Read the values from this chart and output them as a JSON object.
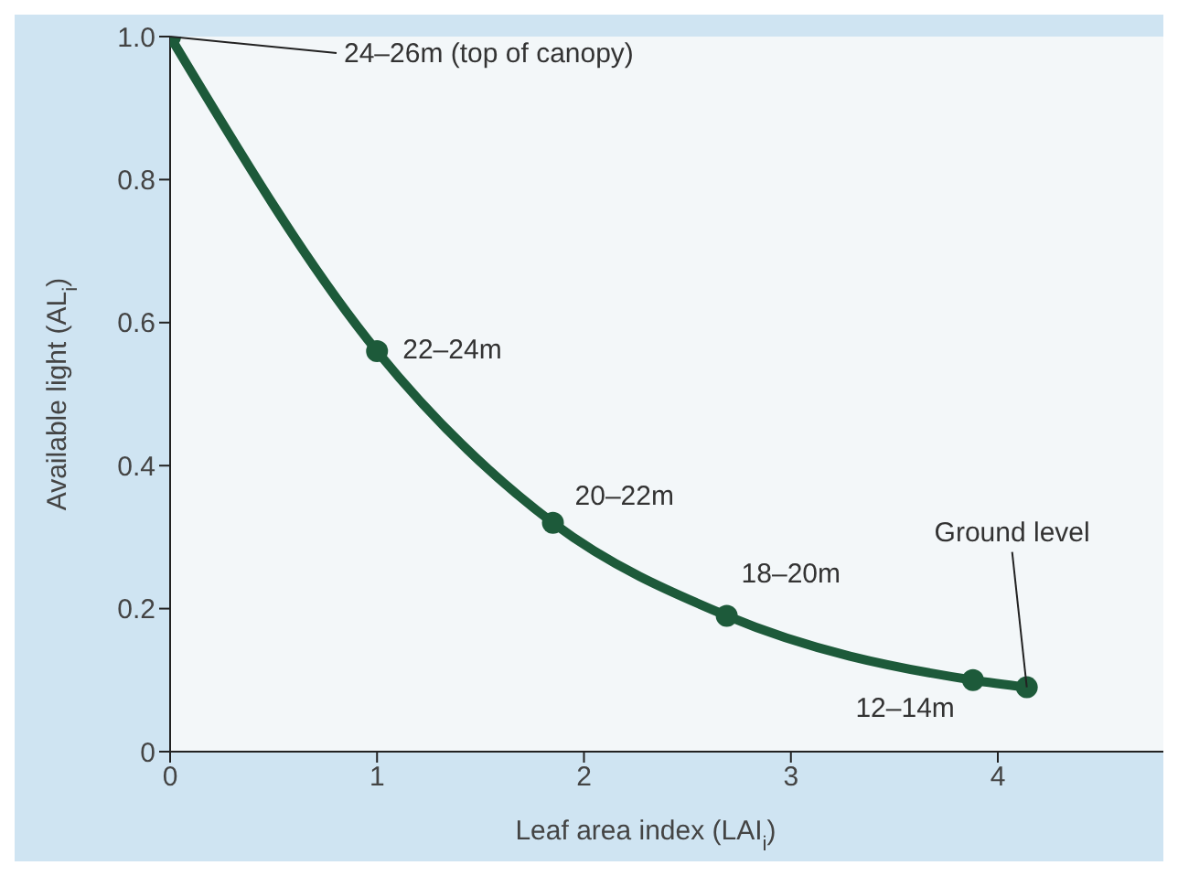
{
  "chart_data": {
    "type": "line",
    "xlabel": "Leaf area index (LAI$_{i}$)",
    "ylabel": "Available light (AL$_{i}$)",
    "x": [
      0,
      1,
      1.85,
      2.69,
      3.88,
      4.14
    ],
    "series": [
      {
        "color": "#1d5a3a",
        "values": [
          1.0,
          0.56,
          0.32,
          0.19,
          0.1,
          0.09
        ]
      }
    ],
    "xlim": [
      0,
      4.8
    ],
    "xticks": [
      0,
      1,
      2,
      3,
      4
    ],
    "ylim": [
      0,
      1.0
    ],
    "yticks": [
      0,
      0.2,
      0.4,
      0.6,
      0.8,
      {
        "value": 1,
        "label": "1.0"
      }
    ],
    "annotations": [
      {
        "text": "24–26m (top of canopy)",
        "x": 0,
        "y": 1.0
      },
      {
        "text": "22–24m",
        "x": 1,
        "y": 0.56
      },
      {
        "text": "20–22m",
        "x": 1.85,
        "y": 0.32
      },
      {
        "text": "18–20m",
        "x": 2.69,
        "y": 0.19
      },
      {
        "text": "12–14m",
        "x": 3.88,
        "y": 0.1
      },
      {
        "text": "Ground level",
        "x": 4.14,
        "y": 0.09
      }
    ],
    "grid": false,
    "legend": false,
    "marker": "circle",
    "line_style": "solid"
  }
}
